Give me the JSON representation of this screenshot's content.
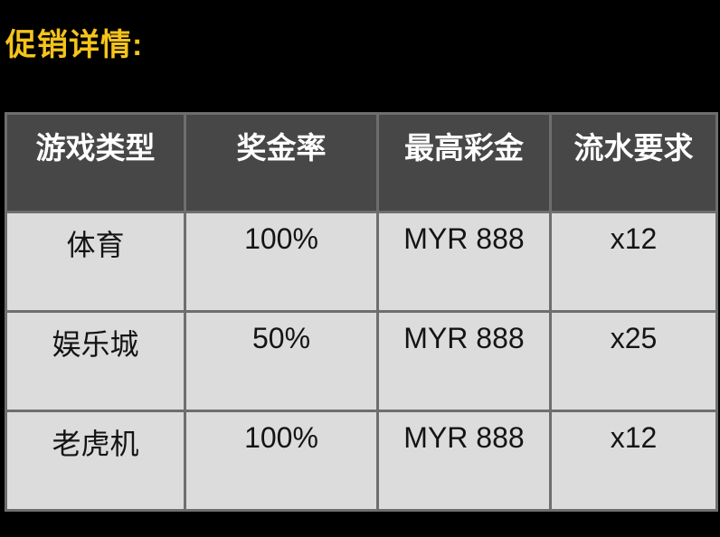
{
  "page": {
    "background_color": "#000000"
  },
  "title": {
    "text": "促销详情:",
    "color": "#F5C41B"
  },
  "table": {
    "colors": {
      "header_bg": "#474747",
      "header_text": "#FFFFFF",
      "cell_bg": "#DCDCDC",
      "cell_text": "#141414",
      "border": "#6E6E6E"
    },
    "headers": [
      "游戏类型",
      "奖金率",
      "最高彩金",
      "流水要求"
    ],
    "rows": [
      {
        "cells": [
          "体育",
          "100%",
          "MYR 888",
          "x12"
        ]
      },
      {
        "cells": [
          "娱乐城",
          "50%",
          "MYR 888",
          "x25"
        ]
      },
      {
        "cells": [
          "老虎机",
          "100%",
          "MYR 888",
          "x12"
        ]
      }
    ]
  }
}
